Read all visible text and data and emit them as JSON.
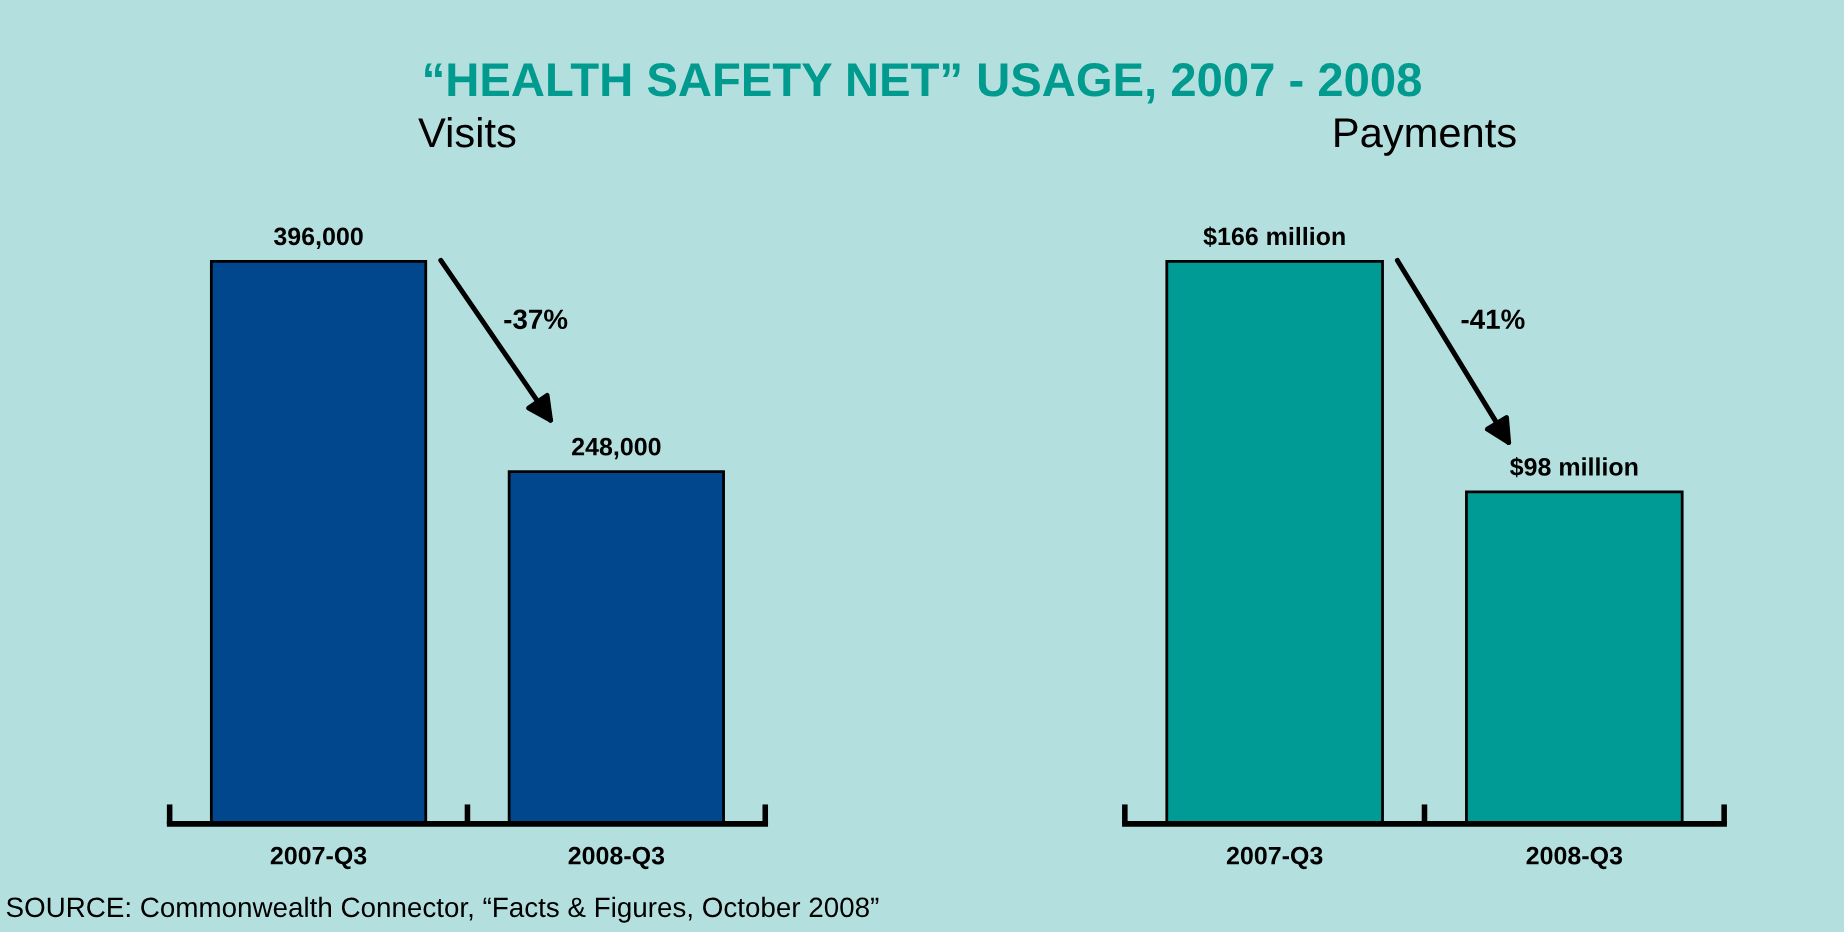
{
  "chart_data": [
    {
      "type": "bar",
      "title": "“HEALTH SAFETY NET” USAGE, 2007 - 2008",
      "subtitle": "Visits",
      "categories": [
        "2007-Q3",
        "2008-Q3"
      ],
      "values": [
        396000,
        248000
      ],
      "value_labels": [
        "396,000",
        "248,000"
      ],
      "color": "#00478d",
      "annotations": [
        "-37%",
        "SOURCE: Commonwealth Connector, “Facts & Figures, October 2008”"
      ]
    },
    {
      "type": "bar",
      "subtitle": "Payments",
      "categories": [
        "2007-Q3",
        "2008-Q3"
      ],
      "values": [
        166,
        98
      ],
      "value_labels": [
        "$166 million",
        "$98 million"
      ],
      "color": "#009b94",
      "annotations": [
        "-41%"
      ]
    }
  ]
}
